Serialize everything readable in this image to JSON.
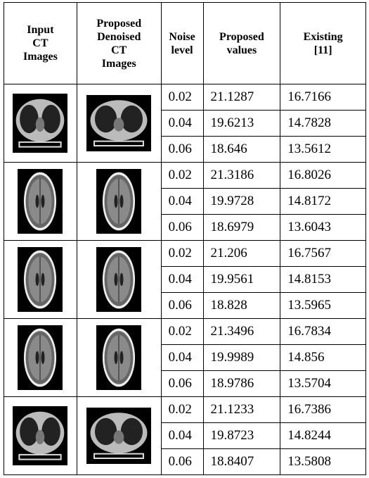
{
  "table": {
    "header": [
      [
        "Input",
        "CT",
        "Images"
      ],
      [
        "Proposed",
        "Denoised",
        "CT",
        "Images"
      ],
      [
        "Noise",
        "level"
      ],
      [
        "Proposed",
        "values"
      ],
      [
        "Existing",
        "[11]"
      ]
    ],
    "groups": [
      {
        "rows": [
          [
            "0.02",
            "21.1287",
            "16.7166"
          ],
          [
            "0.04",
            "19.6213",
            "14.7828"
          ],
          [
            "0.06",
            "18.646",
            "13.5612"
          ]
        ]
      },
      {
        "rows": [
          [
            "0.02",
            "21.3186",
            "16.8026"
          ],
          [
            "0.04",
            "19.9728",
            "14.8172"
          ],
          [
            "0.06",
            "18.6979",
            "13.6043"
          ]
        ]
      },
      {
        "rows": [
          [
            "0.02",
            "21.206",
            "16.7567"
          ],
          [
            "0.04",
            "19.9561",
            "14.8153"
          ],
          [
            "0.06",
            "18.828",
            "13.5965"
          ]
        ]
      },
      {
        "rows": [
          [
            "0.02",
            "21.3496",
            "16.7834"
          ],
          [
            "0.04",
            "19.9989",
            "14.856"
          ],
          [
            "0.06",
            "18.9786",
            "13.5704"
          ]
        ]
      },
      {
        "rows": [
          [
            "0.02",
            "21.1233",
            "16.7386"
          ],
          [
            "0.04",
            "19.8723",
            "14.8244"
          ],
          [
            "0.06",
            "18.8407",
            "13.5808"
          ]
        ]
      }
    ]
  }
}
